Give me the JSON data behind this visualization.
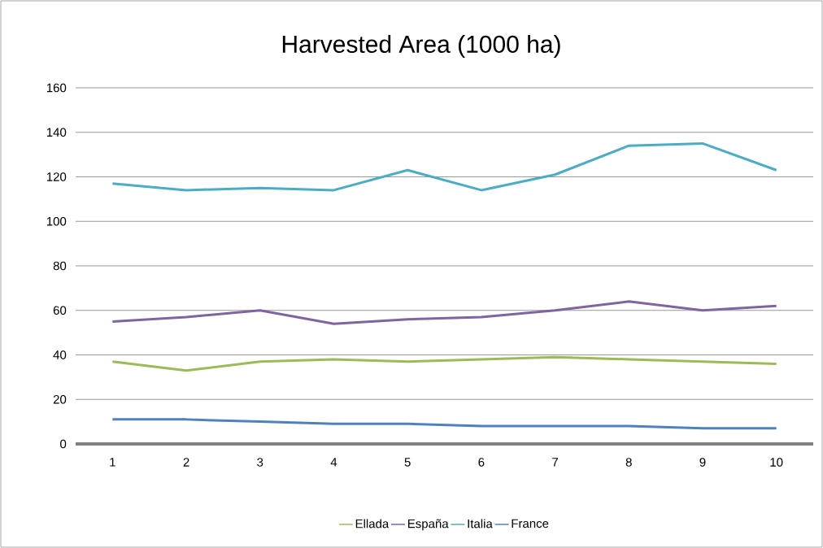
{
  "chart_data": {
    "type": "line",
    "title": "Harvested Area (1000 ha)",
    "categories": [
      "1",
      "2",
      "3",
      "4",
      "5",
      "6",
      "7",
      "8",
      "9",
      "10"
    ],
    "series": [
      {
        "name": "Ellada",
        "color": "#9bbb59",
        "values": [
          37,
          33,
          37,
          38,
          37,
          38,
          39,
          38,
          37,
          36
        ]
      },
      {
        "name": "España",
        "color": "#8064a2",
        "values": [
          55,
          57,
          60,
          54,
          56,
          57,
          60,
          64,
          60,
          62
        ]
      },
      {
        "name": "Italia",
        "color": "#4bacc6",
        "values": [
          117,
          114,
          115,
          114,
          123,
          114,
          121,
          134,
          135,
          123
        ]
      },
      {
        "name": "France",
        "color": "#4f81bd",
        "values": [
          11,
          11,
          10,
          9,
          9,
          8,
          8,
          8,
          7,
          7
        ]
      }
    ],
    "ylim": [
      0,
      160
    ],
    "yticks": [
      0,
      20,
      40,
      60,
      80,
      100,
      120,
      140,
      160
    ],
    "grid": "y",
    "legend": "bottom",
    "marker": "none",
    "line_style": "solid"
  }
}
